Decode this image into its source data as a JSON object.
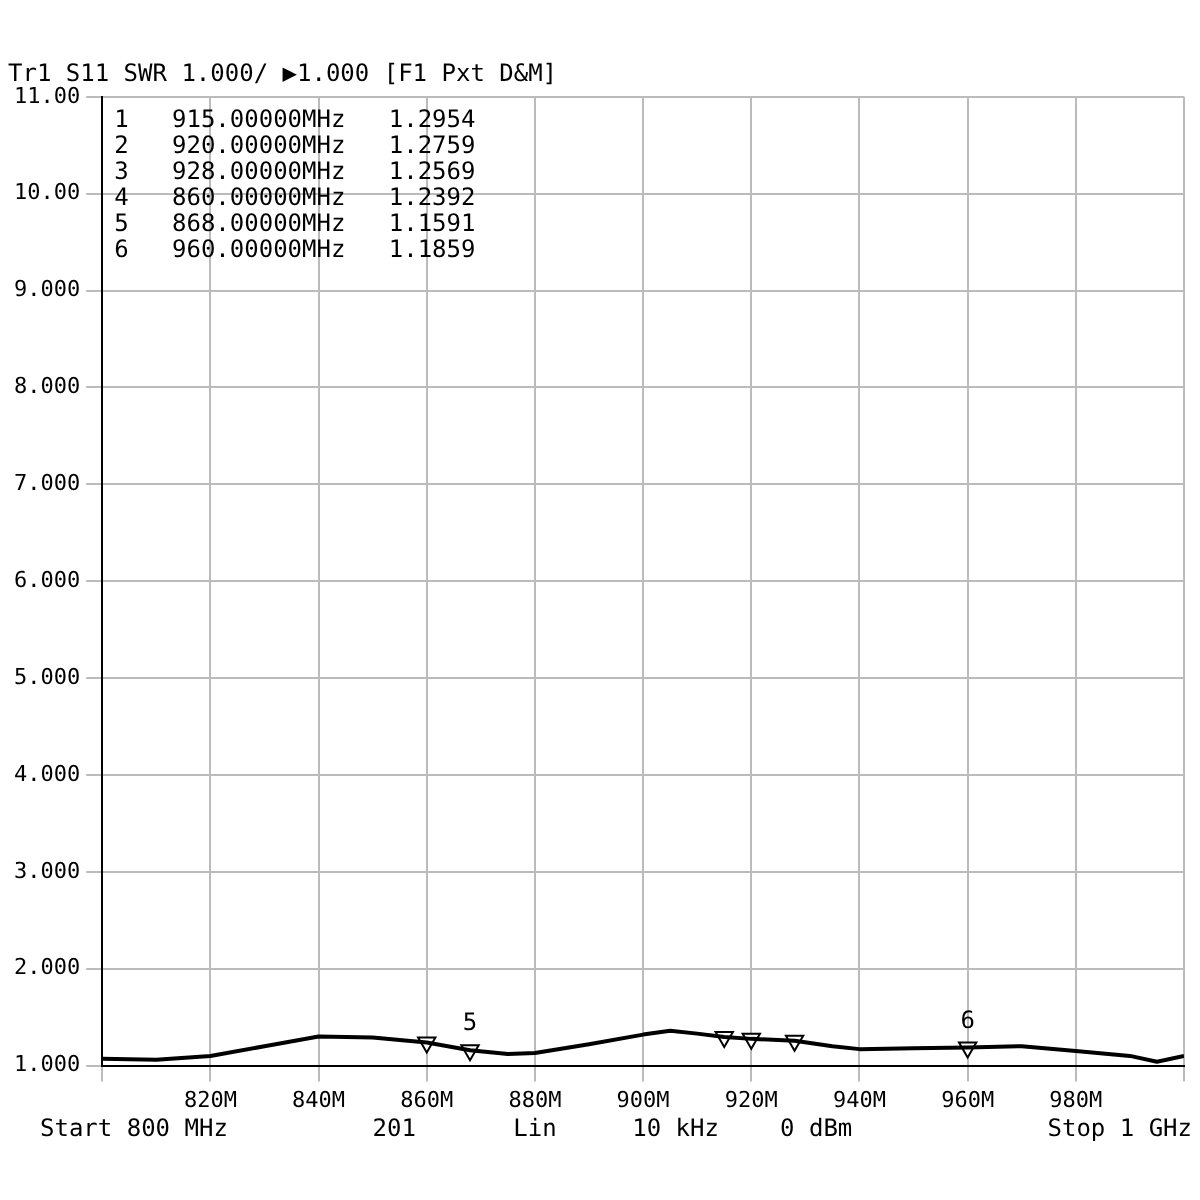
{
  "chart_data": {
    "type": "line",
    "title": "Tr1 S11 SWR 1.000/ ▶1.000 [F1 Pxt D&M]",
    "xlim": [
      800,
      1000
    ],
    "xticks": [
      {
        "value": 800,
        "label": null
      },
      {
        "value": 820,
        "label": "820M"
      },
      {
        "value": 840,
        "label": "840M"
      },
      {
        "value": 860,
        "label": "860M"
      },
      {
        "value": 880,
        "label": "880M"
      },
      {
        "value": 900,
        "label": "900M"
      },
      {
        "value": 920,
        "label": "920M"
      },
      {
        "value": 940,
        "label": "940M"
      },
      {
        "value": 960,
        "label": "960M"
      },
      {
        "value": 980,
        "label": "980M"
      },
      {
        "value": 1000,
        "label": null
      }
    ],
    "ylim": [
      1,
      11
    ],
    "yticks": [
      {
        "value": 1,
        "label": "1.000"
      },
      {
        "value": 2,
        "label": "2.000"
      },
      {
        "value": 3,
        "label": "3.000"
      },
      {
        "value": 4,
        "label": "4.000"
      },
      {
        "value": 5,
        "label": "5.000"
      },
      {
        "value": 6,
        "label": "6.000"
      },
      {
        "value": 7,
        "label": "7.000"
      },
      {
        "value": 8,
        "label": "8.000"
      },
      {
        "value": 9,
        "label": "9.000"
      },
      {
        "value": 10,
        "label": "10.00"
      },
      {
        "value": 11,
        "label": "11.00"
      }
    ],
    "grid": true,
    "legend": false,
    "series": [
      {
        "color": "#000000",
        "marker": "none",
        "x": [
          800,
          810,
          820,
          830,
          840,
          850,
          860,
          868,
          875,
          880,
          890,
          900,
          905,
          910,
          915,
          920,
          928,
          935,
          940,
          950,
          960,
          970,
          980,
          990,
          995,
          1000
        ],
        "values": [
          1.07,
          1.06,
          1.1,
          1.2,
          1.3,
          1.29,
          1.2392,
          1.1591,
          1.12,
          1.13,
          1.22,
          1.32,
          1.36,
          1.33,
          1.2954,
          1.2759,
          1.2569,
          1.2,
          1.17,
          1.18,
          1.1859,
          1.2,
          1.15,
          1.1,
          1.04,
          1.1
        ]
      },
      {
        "type": "scatter",
        "color": "#000000",
        "marker": "triangle",
        "x": [
          915,
          920,
          928,
          860,
          868,
          960
        ],
        "values": [
          1.2954,
          1.2759,
          1.2569,
          1.2392,
          1.1591,
          1.1859
        ]
      }
    ],
    "annotations": [
      "Start 800 MHz",
      "201",
      "Lin",
      "10 kHz",
      "0 dBm",
      "Stop 1 GHz",
      "1   915.00000MHz   1.2954",
      "2   920.00000MHz   1.2759",
      "3   928.00000MHz   1.2569",
      "4   860.00000MHz   1.2392",
      "5   868.00000MHz   1.1591",
      "6   960.00000MHz   1.1859",
      {
        "text": "6",
        "x": 960,
        "y": 1.1859
      },
      {
        "text": "5",
        "x": 868,
        "y": 1.1591
      }
    ]
  }
}
